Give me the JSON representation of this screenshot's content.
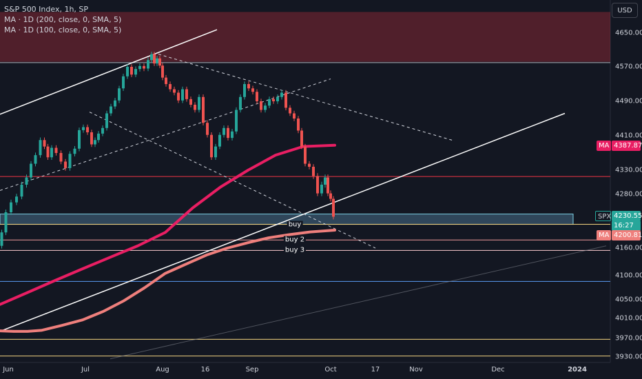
{
  "header": {
    "title": "S&P 500 Index, 1h, SP",
    "indicators": [
      "MA · 1D (200, close, 0, SMA, 5)",
      "MA · 1D (100, close, 0, SMA, 5)"
    ]
  },
  "currency": "USD",
  "price_badges": {
    "ma1_tag": "MA",
    "ma1_value": "4387.87",
    "spx_tag": "SPX",
    "spx_value": "4230.55",
    "spx_timer": "16:27",
    "ma2_tag": "MA",
    "ma2_value": "4200.81"
  },
  "chart_data": {
    "type": "line",
    "symbol": "S&P 500 Index",
    "interval": "1h",
    "y_ticks": [
      "4650.00",
      "4570.00",
      "4490.00",
      "4410.00",
      "4330.00",
      "4280.00",
      "4160.00",
      "4100.00",
      "4050.00",
      "4010.00",
      "3970.00",
      "3930.00"
    ],
    "x_ticks": [
      "Jun",
      "Jul",
      "Aug",
      "16",
      "Sep",
      "Oct",
      "17",
      "Nov",
      "Dec",
      "2024"
    ],
    "ylim": [
      3915,
      4700
    ],
    "price_path": [
      [
        0,
        4165
      ],
      [
        5,
        4195
      ],
      [
        12,
        4240
      ],
      [
        20,
        4262
      ],
      [
        28,
        4275
      ],
      [
        35,
        4300
      ],
      [
        42,
        4315
      ],
      [
        48,
        4345
      ],
      [
        55,
        4365
      ],
      [
        62,
        4400
      ],
      [
        67,
        4385
      ],
      [
        72,
        4360
      ],
      [
        78,
        4382
      ],
      [
        85,
        4370
      ],
      [
        92,
        4350
      ],
      [
        98,
        4335
      ],
      [
        105,
        4368
      ],
      [
        112,
        4380
      ],
      [
        118,
        4423
      ],
      [
        124,
        4430
      ],
      [
        130,
        4418
      ],
      [
        136,
        4390
      ],
      [
        140,
        4400
      ],
      [
        146,
        4415
      ],
      [
        152,
        4428
      ],
      [
        158,
        4462
      ],
      [
        164,
        4478
      ],
      [
        170,
        4492
      ],
      [
        176,
        4520
      ],
      [
        182,
        4548
      ],
      [
        188,
        4570
      ],
      [
        194,
        4552
      ],
      [
        200,
        4565
      ],
      [
        206,
        4572
      ],
      [
        212,
        4566
      ],
      [
        218,
        4586
      ],
      [
        222,
        4600
      ],
      [
        226,
        4578
      ],
      [
        230,
        4590
      ],
      [
        234,
        4573
      ],
      [
        238,
        4545
      ],
      [
        244,
        4530
      ],
      [
        250,
        4518
      ],
      [
        256,
        4510
      ],
      [
        262,
        4492
      ],
      [
        268,
        4518
      ],
      [
        274,
        4495
      ],
      [
        280,
        4482
      ],
      [
        286,
        4470
      ],
      [
        292,
        4500
      ],
      [
        298,
        4440
      ],
      [
        304,
        4412
      ],
      [
        310,
        4360
      ],
      [
        316,
        4385
      ],
      [
        322,
        4412
      ],
      [
        328,
        4428
      ],
      [
        334,
        4405
      ],
      [
        340,
        4420
      ],
      [
        346,
        4470
      ],
      [
        352,
        4500
      ],
      [
        358,
        4530
      ],
      [
        364,
        4520
      ],
      [
        370,
        4512
      ],
      [
        376,
        4490
      ],
      [
        382,
        4470
      ],
      [
        388,
        4480
      ],
      [
        394,
        4495
      ],
      [
        400,
        4490
      ],
      [
        406,
        4500
      ],
      [
        412,
        4510
      ],
      [
        418,
        4475
      ],
      [
        424,
        4462
      ],
      [
        430,
        4450
      ],
      [
        436,
        4422
      ],
      [
        440,
        4385
      ],
      [
        446,
        4345
      ],
      [
        452,
        4338
      ],
      [
        458,
        4318
      ],
      [
        464,
        4282
      ],
      [
        470,
        4300
      ],
      [
        474,
        4315
      ],
      [
        478,
        4282
      ],
      [
        482,
        4270
      ],
      [
        486,
        4230
      ]
    ],
    "series": [
      {
        "name": "MA · 1D (200, close, 0, SMA, 5)",
        "color": "#e91e63",
        "points": [
          [
            0,
            4040
          ],
          [
            40,
            4065
          ],
          [
            80,
            4090
          ],
          [
            120,
            4115
          ],
          [
            160,
            4140
          ],
          [
            200,
            4165
          ],
          [
            240,
            4195
          ],
          [
            280,
            4250
          ],
          [
            320,
            4295
          ],
          [
            360,
            4330
          ],
          [
            400,
            4365
          ],
          [
            440,
            4385
          ],
          [
            486,
            4388
          ]
        ]
      },
      {
        "name": "MA · 1D (100, close, 0, SMA, 5)",
        "color": "#ef7f7c",
        "points": [
          [
            0,
            3985
          ],
          [
            20,
            3984
          ],
          [
            40,
            3984
          ],
          [
            60,
            3986
          ],
          [
            90,
            3996
          ],
          [
            120,
            4007
          ],
          [
            150,
            4025
          ],
          [
            180,
            4048
          ],
          [
            210,
            4075
          ],
          [
            240,
            4105
          ],
          [
            270,
            4125
          ],
          [
            300,
            4145
          ],
          [
            330,
            4160
          ],
          [
            360,
            4172
          ],
          [
            390,
            4183
          ],
          [
            420,
            4190
          ],
          [
            450,
            4196
          ],
          [
            486,
            4200
          ]
        ]
      }
    ],
    "horizontal_levels": [
      {
        "value": 4580,
        "color": "#b2b5be"
      },
      {
        "value": 4317,
        "color": "#f23645"
      },
      {
        "value": 4213,
        "color": "#f5d580",
        "label": "buy"
      },
      {
        "value": 4178,
        "color": "#ef9a9a",
        "label": "buy 2"
      },
      {
        "value": 4155,
        "color": "#ffcdd2",
        "label": "buy 3"
      },
      {
        "value": 4088,
        "color": "#5b9cf6"
      },
      {
        "value": 3968,
        "color": "#f5d580"
      },
      {
        "value": 3932,
        "color": "#f5d580"
      }
    ],
    "zones": [
      {
        "from": 4582,
        "to": 4700,
        "color": "#f23645"
      },
      {
        "from": 4213,
        "to": 4236,
        "color": "#5b8fb0"
      }
    ],
    "trendlines": [
      {
        "from": [
          0,
          4460
        ],
        "to": [
          315,
          4658
        ],
        "style": "solid",
        "color": "#ffffff"
      },
      {
        "from": [
          0,
          3984
        ],
        "to": [
          820,
          4462
        ],
        "style": "solid",
        "color": "#ffffff"
      },
      {
        "from": [
          0,
          4288
        ],
        "to": [
          480,
          4542
        ],
        "style": "dashed",
        "color": "#d1d4dc"
      },
      {
        "from": [
          130,
          4465
        ],
        "to": [
          545,
          4160
        ],
        "style": "dashed",
        "color": "#d1d4dc"
      },
      {
        "from": [
          230,
          4600
        ],
        "to": [
          660,
          4398
        ],
        "style": "dashed",
        "color": "#d1d4dc"
      },
      {
        "from": [
          160,
          3926
        ],
        "to": [
          880,
          4165
        ],
        "style": "solid",
        "color": "#787b86"
      }
    ]
  }
}
